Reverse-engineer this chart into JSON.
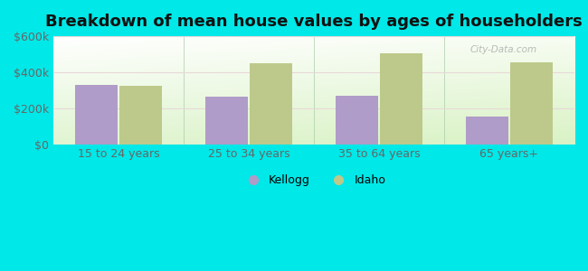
{
  "title": "Breakdown of mean house values by ages of householders",
  "categories": [
    "15 to 24 years",
    "25 to 34 years",
    "35 to 64 years",
    "65 years+"
  ],
  "kellogg_values": [
    330000,
    265000,
    270000,
    155000
  ],
  "idaho_values": [
    325000,
    450000,
    505000,
    455000
  ],
  "kellogg_color": "#b09cc8",
  "idaho_color": "#bdc98a",
  "background_color": "#00e8e8",
  "ylim": [
    0,
    600000
  ],
  "yticks": [
    0,
    200000,
    400000,
    600000
  ],
  "ytick_labels": [
    "$0",
    "$200k",
    "$400k",
    "$600k"
  ],
  "legend_kellogg": "Kellogg",
  "legend_idaho": "Idaho",
  "bar_width": 0.32,
  "title_fontsize": 13,
  "tick_fontsize": 9,
  "legend_fontsize": 9,
  "watermark": "City-Data.com"
}
